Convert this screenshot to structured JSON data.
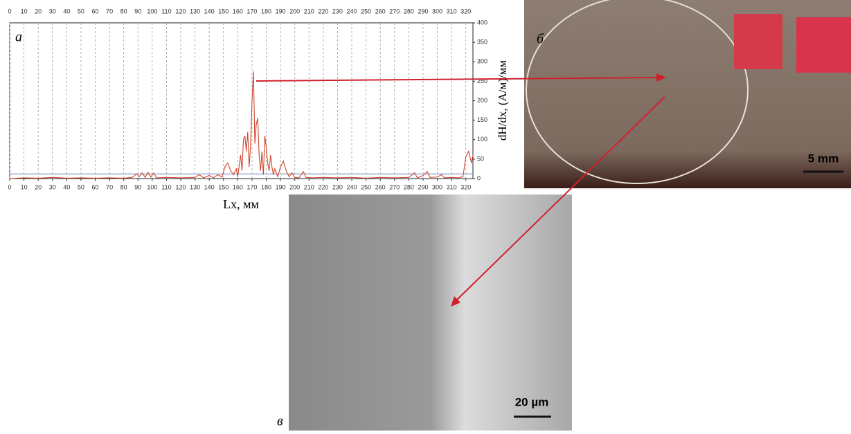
{
  "chart_data": {
    "type": "line",
    "x_label": "Lx, мм",
    "y_label": "dH/dx, (A/м)/мм",
    "x": [
      0,
      10,
      20,
      30,
      40,
      50,
      60,
      70,
      80,
      86,
      89,
      91,
      93,
      95,
      97,
      99,
      101,
      103,
      110,
      120,
      130,
      133,
      136,
      140,
      143,
      146,
      149,
      151,
      153,
      155,
      157,
      159,
      160,
      162,
      163,
      164,
      165,
      166,
      167,
      168,
      169,
      170,
      171,
      172,
      173,
      174,
      175,
      176,
      177,
      178,
      179,
      180,
      181,
      182,
      183,
      184,
      185,
      186,
      188,
      190,
      192,
      194,
      196,
      198,
      200,
      203,
      206,
      208,
      212,
      220,
      230,
      240,
      250,
      260,
      270,
      280,
      284,
      286,
      290,
      293,
      295,
      300,
      303,
      305,
      310,
      315,
      318,
      320,
      322,
      324,
      325
    ],
    "series": [
      {
        "color": "#d0442c",
        "values": [
          0,
          2,
          1,
          3,
          1,
          2,
          1,
          2,
          1,
          3,
          12,
          5,
          15,
          3,
          16,
          4,
          14,
          2,
          3,
          2,
          3,
          10,
          2,
          8,
          2,
          10,
          4,
          30,
          40,
          20,
          10,
          25,
          5,
          60,
          20,
          100,
          110,
          70,
          120,
          30,
          85,
          200,
          275,
          90,
          140,
          155,
          60,
          20,
          70,
          10,
          110,
          80,
          40,
          20,
          60,
          30,
          10,
          25,
          5,
          30,
          45,
          20,
          5,
          15,
          3,
          2,
          18,
          3,
          2,
          3,
          2,
          3,
          1,
          3,
          2,
          3,
          15,
          2,
          8,
          18,
          3,
          4,
          10,
          2,
          3,
          2,
          5,
          55,
          70,
          40,
          60
        ]
      }
    ],
    "reference_value": 12,
    "reference_color": "#8a9fd0",
    "xlim": [
      0,
      325
    ],
    "ylim": [
      0,
      400
    ],
    "xticks": [
      0,
      10,
      20,
      30,
      40,
      50,
      60,
      70,
      80,
      90,
      100,
      110,
      120,
      130,
      140,
      150,
      160,
      170,
      180,
      190,
      200,
      210,
      220,
      230,
      240,
      250,
      260,
      270,
      280,
      290,
      300,
      310,
      320
    ],
    "yticks": [
      0,
      50,
      100,
      150,
      200,
      250,
      300,
      350,
      400
    ],
    "grid": "x"
  },
  "panels": {
    "a": "a",
    "b": "б",
    "c": "в"
  },
  "scale_bars": [
    "5 mm",
    "20 µm"
  ]
}
